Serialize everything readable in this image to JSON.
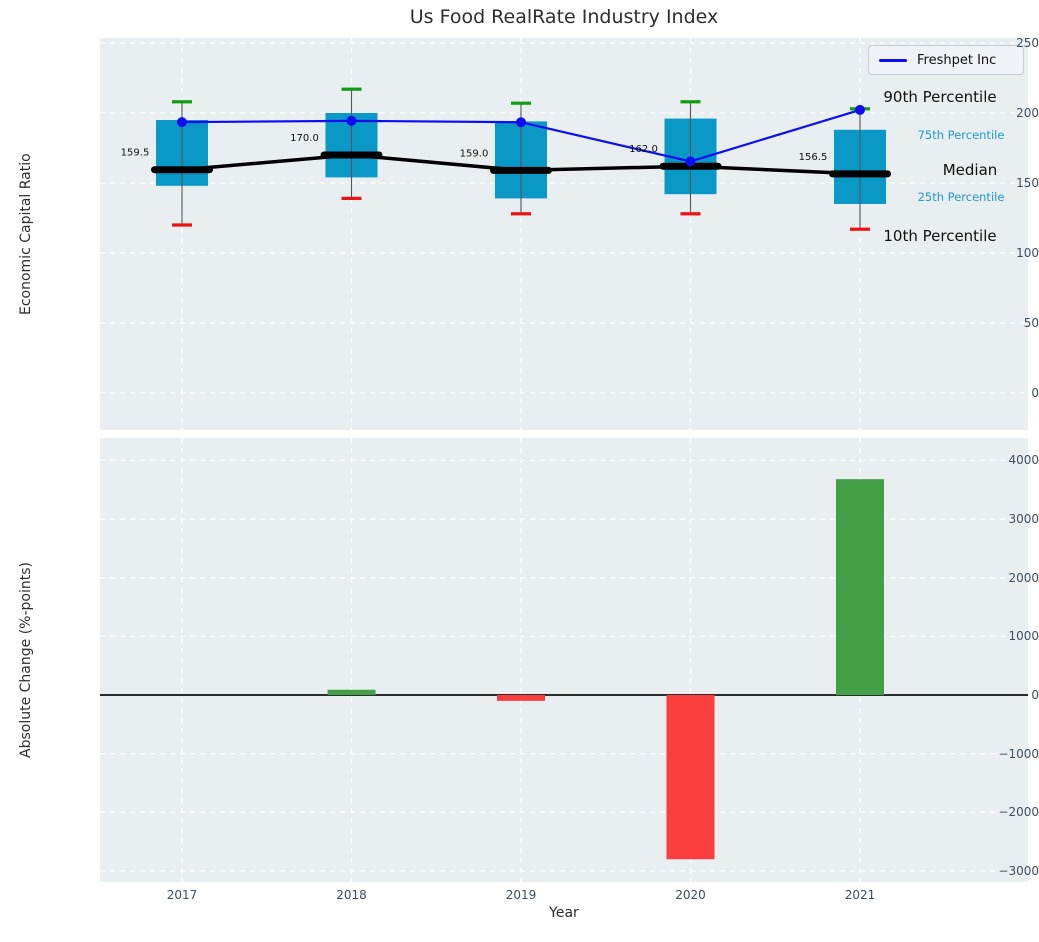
{
  "title": "Us Food RealRate Industry Index",
  "xlabel": "Year",
  "legend": {
    "label": "Freshpet Inc",
    "line_icon": "blue-line"
  },
  "colors": {
    "box_fill": "#0a99c6",
    "percentile_text": "#1f99cc",
    "median": "#000000",
    "freshpet_line": "#0d0df0",
    "cap_90th": "#0f9d0f",
    "cap_10th": "#ee1111",
    "bar_positive": "#43a047",
    "bar_negative": "#fa3e3e",
    "axes_background": "#e9eef0",
    "gridline": "#ffffff",
    "tick_text": "#3c4f63",
    "whisker": "#555555"
  },
  "chart_data": [
    {
      "type": "boxplot+line",
      "title": "Us Food RealRate Industry Index",
      "ylabel": "Economic Capital Ratio",
      "yticks": [
        0,
        50,
        100,
        150,
        200,
        250
      ],
      "ylim": [
        -26,
        254
      ],
      "grid": true,
      "categories": [
        "2017",
        "2018",
        "2019",
        "2020",
        "2021"
      ],
      "series": [
        {
          "name": "90th Percentile",
          "values": [
            208,
            217,
            207,
            208,
            203
          ]
        },
        {
          "name": "75th Percentile",
          "values": [
            195,
            200,
            194,
            196,
            188
          ]
        },
        {
          "name": "Median",
          "values": [
            159.5,
            170.0,
            159.0,
            162.0,
            156.5
          ]
        },
        {
          "name": "25th Percentile",
          "values": [
            148,
            154,
            139,
            142,
            135
          ]
        },
        {
          "name": "10th Percentile",
          "values": [
            120,
            139,
            128,
            128,
            117
          ]
        },
        {
          "name": "Freshpet Inc",
          "values": [
            193.5,
            194.4,
            193.4,
            165.4,
            202.2
          ]
        }
      ],
      "median_annotations": [
        "159.5",
        "170.0",
        "159.0",
        "162.0",
        "156.5"
      ],
      "right_labels": [
        "90th Percentile",
        "75th Percentile",
        "Median",
        "25th Percentile",
        "10th Percentile"
      ],
      "legend_position": "upper right",
      "legend_entries": [
        "Freshpet Inc"
      ]
    },
    {
      "type": "bar",
      "ylabel": "Absolute Change (%-points)",
      "yticks": [
        -3000,
        -2000,
        -1000,
        0,
        1000,
        2000,
        3000,
        4000
      ],
      "ylim": [
        -3190,
        4390
      ],
      "grid": true,
      "categories": [
        "2017",
        "2018",
        "2019",
        "2020",
        "2021"
      ],
      "values": [
        null,
        90,
        -100,
        -2800,
        3680
      ],
      "xlabel": "Year"
    }
  ]
}
